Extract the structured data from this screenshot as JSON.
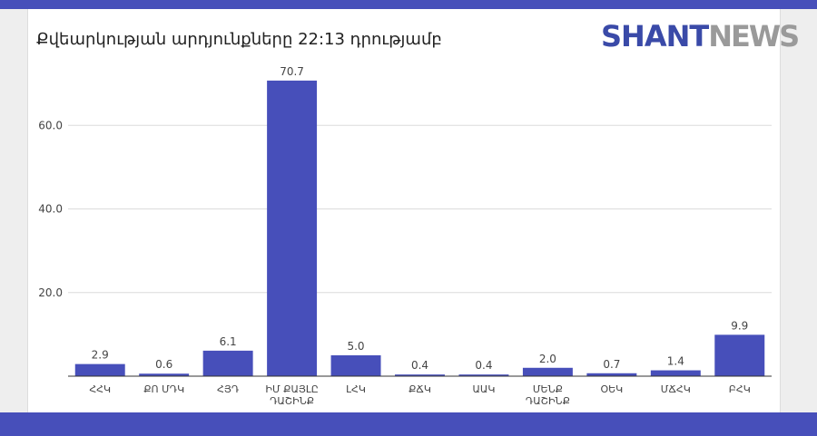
{
  "chart_data": {
    "type": "bar",
    "title": "Քվեարկության արդյունքները 22:13 դրությամբ",
    "categories": [
      "ՀՀԿ",
      "ՔՈ ՄԴԿ",
      "ՀՅԴ",
      "ԻՄ ՔԱՅԼԸ ԴԱՇԻՆՔ",
      "ԼՀԿ",
      "ՔՃԿ",
      "ԱԱԿ",
      "ՄԵՆՔ ԴԱՇԻՆՔ",
      "ՕԵԿ",
      "ՄՃՀԿ",
      "ԲՀԿ"
    ],
    "values": [
      2.9,
      0.6,
      6.1,
      70.7,
      5.0,
      0.4,
      0.4,
      2.0,
      0.7,
      1.4,
      9.9
    ],
    "value_labels": [
      "2.9",
      "0.6",
      "6.1",
      "70.7",
      "5.0",
      "0.4",
      "0.4",
      "2.0",
      "0.7",
      "1.4",
      "9.9"
    ],
    "y_ticks": [
      20,
      40,
      60
    ],
    "y_tick_labels": [
      "20.0",
      "40.0",
      "60.0"
    ],
    "ylim": [
      0,
      75
    ],
    "grid": true,
    "bar_color": "#474fba"
  },
  "logo": {
    "part1": "SHANT",
    "part2": "NEWS"
  },
  "colors": {
    "band": "#474fba",
    "logo_primary": "#3a4aa8",
    "logo_secondary": "#9a9a9a"
  }
}
